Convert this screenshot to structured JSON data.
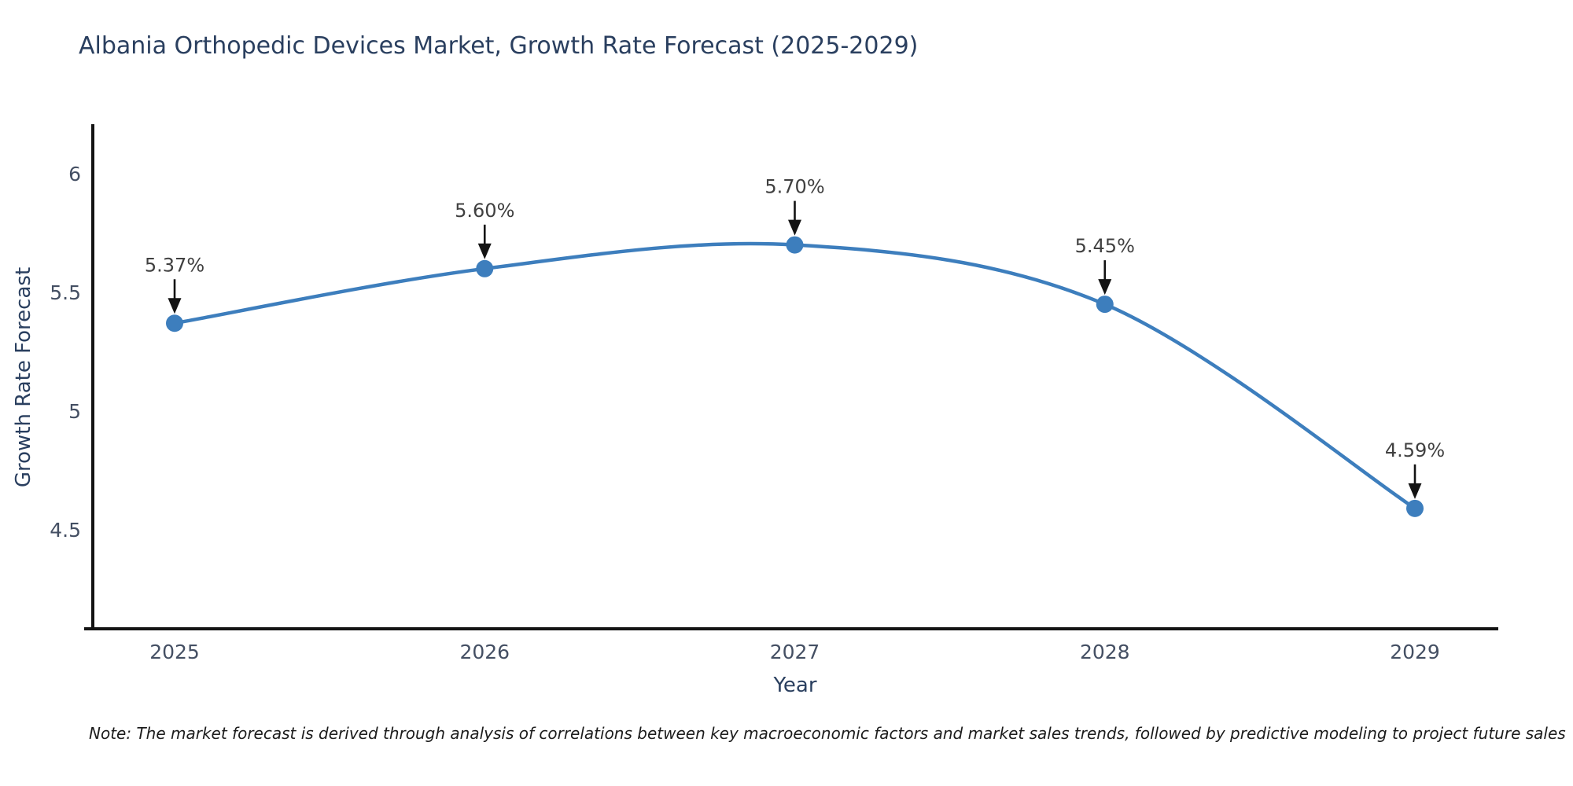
{
  "title": "Albania Orthopedic Devices Market, Growth Rate Forecast (2025-2029)",
  "chart_data": {
    "type": "line",
    "x": [
      2025,
      2026,
      2027,
      2028,
      2029
    ],
    "x_tick_labels": [
      "2025",
      "2026",
      "2027",
      "2028",
      "2029"
    ],
    "series": [
      {
        "name": "Growth Rate Forecast",
        "values": [
          5.37,
          5.6,
          5.7,
          5.45,
          4.59
        ]
      }
    ],
    "point_labels": [
      "5.37%",
      "5.60%",
      "5.70%",
      "5.45%",
      "4.59%"
    ],
    "xlabel": "Year",
    "ylabel": "Growth Rate Forecast",
    "yticks": [
      4.5,
      5,
      5.5,
      6
    ],
    "ytick_labels": [
      "4.5",
      "5",
      "5.5",
      "6"
    ],
    "ylim": [
      4.08,
      6.22
    ],
    "xlim": [
      2024.73,
      2029.27
    ],
    "grid": false,
    "legend": false,
    "line_shape": "spline",
    "annotation_style": "value-label-with-down-arrow"
  },
  "note": "Note: The market forecast is derived through analysis of correlations between key macroeconomic factors and market sales trends, followed by predictive modeling to project future sales",
  "colors": {
    "line": "#3d7ebd",
    "marker": "#3d7ebd",
    "title_text": "#2a3f5f",
    "axis_text": "#444f63",
    "annotation_text": "#404040",
    "arrow": "#131313",
    "axis_line": "#131313",
    "background": "#ffffff"
  }
}
